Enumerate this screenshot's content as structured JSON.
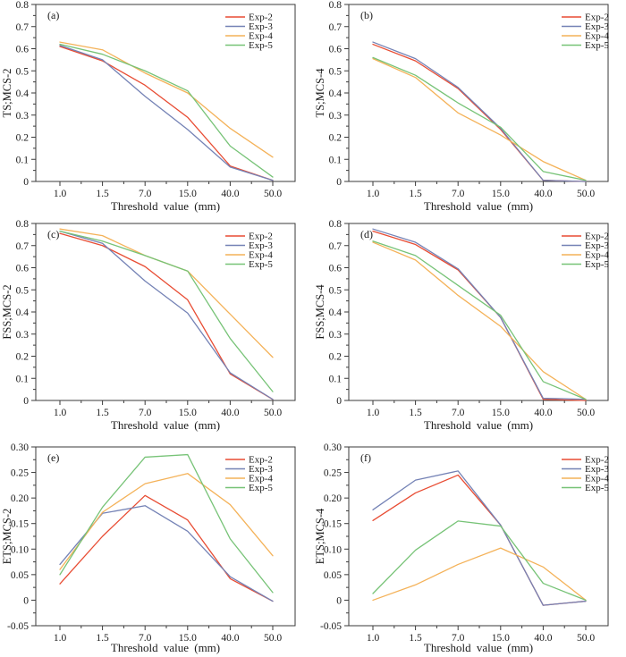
{
  "figure": {
    "x_axis_title": "Threshold value (mm)",
    "x_tick_labels": [
      "1.0",
      "1.5",
      "7.0",
      "15.0",
      "40.0",
      "50.0"
    ],
    "legend_entries": [
      "Exp-2",
      "Exp-3",
      "Exp-4",
      "Exp-5"
    ],
    "colors": {
      "exp2": "#e84c33",
      "exp3": "#7482b5",
      "exp4": "#f4b259",
      "exp5": "#77c377"
    }
  },
  "chart_data": [
    {
      "type": "line",
      "panel_label": "(a)",
      "ylabel": "TS;MCS-2",
      "xlabel": "Threshold value (mm)",
      "categories": [
        "1.0",
        "1.5",
        "7.0",
        "15.0",
        "40.0",
        "50.0"
      ],
      "ylim": [
        0,
        0.8
      ],
      "ytick_step": 0.1,
      "ytick_labels": [
        "0",
        "0.1",
        "0.2",
        "0.3",
        "0.4",
        "0.5",
        "0.6",
        "0.7",
        "0.8"
      ],
      "legend_position": "top-right",
      "grid": false,
      "series": [
        {
          "name": "Exp-2",
          "color": "#e84c33",
          "values": [
            0.61,
            0.545,
            0.435,
            0.29,
            0.07,
            0.005
          ]
        },
        {
          "name": "Exp-3",
          "color": "#7482b5",
          "values": [
            0.615,
            0.55,
            0.385,
            0.235,
            0.065,
            0.005
          ]
        },
        {
          "name": "Exp-4",
          "color": "#f4b259",
          "values": [
            0.63,
            0.595,
            0.49,
            0.4,
            0.24,
            0.11
          ]
        },
        {
          "name": "Exp-5",
          "color": "#77c377",
          "values": [
            0.62,
            0.575,
            0.5,
            0.41,
            0.16,
            0.02
          ]
        }
      ]
    },
    {
      "type": "line",
      "panel_label": "(b)",
      "ylabel": "TS;MCS-4",
      "xlabel": "Threshold value (mm)",
      "categories": [
        "1.0",
        "1.5",
        "7.0",
        "15.0",
        "40.0",
        "50.0"
      ],
      "ylim": [
        0,
        0.8
      ],
      "ytick_step": 0.1,
      "ytick_labels": [
        "0",
        "0.1",
        "0.2",
        "0.3",
        "0.4",
        "0.5",
        "0.6",
        "0.7",
        "0.8"
      ],
      "legend_position": "top-right",
      "grid": false,
      "series": [
        {
          "name": "Exp-2",
          "color": "#e84c33",
          "values": [
            0.62,
            0.545,
            0.42,
            0.235,
            0.005,
            0.0
          ]
        },
        {
          "name": "Exp-3",
          "color": "#7482b5",
          "values": [
            0.63,
            0.555,
            0.425,
            0.24,
            0.005,
            0.0
          ]
        },
        {
          "name": "Exp-4",
          "color": "#f4b259",
          "values": [
            0.555,
            0.47,
            0.31,
            0.21,
            0.09,
            0.005
          ]
        },
        {
          "name": "Exp-5",
          "color": "#77c377",
          "values": [
            0.56,
            0.48,
            0.355,
            0.245,
            0.045,
            0.005
          ]
        }
      ]
    },
    {
      "type": "line",
      "panel_label": "(c)",
      "ylabel": "FSS;MCS-2",
      "xlabel": "Threshold value (mm)",
      "categories": [
        "1.0",
        "1.5",
        "7.0",
        "15.0",
        "40.0",
        "50.0"
      ],
      "ylim": [
        0,
        0.8
      ],
      "ytick_step": 0.1,
      "ytick_labels": [
        "0",
        "0.1",
        "0.2",
        "0.3",
        "0.4",
        "0.5",
        "0.6",
        "0.7",
        "0.8"
      ],
      "legend_position": "top-right",
      "grid": false,
      "series": [
        {
          "name": "Exp-2",
          "color": "#e84c33",
          "values": [
            0.755,
            0.7,
            0.605,
            0.455,
            0.12,
            0.005
          ]
        },
        {
          "name": "Exp-3",
          "color": "#7482b5",
          "values": [
            0.765,
            0.71,
            0.54,
            0.395,
            0.125,
            0.005
          ]
        },
        {
          "name": "Exp-4",
          "color": "#f4b259",
          "values": [
            0.775,
            0.745,
            0.655,
            0.585,
            0.39,
            0.195
          ]
        },
        {
          "name": "Exp-5",
          "color": "#77c377",
          "values": [
            0.765,
            0.72,
            0.655,
            0.585,
            0.28,
            0.04
          ]
        }
      ]
    },
    {
      "type": "line",
      "panel_label": "(d)",
      "ylabel": "FSS;MCS-4",
      "xlabel": "Threshold value (mm)",
      "categories": [
        "1.0",
        "1.5",
        "7.0",
        "15.0",
        "40.0",
        "50.0"
      ],
      "ylim": [
        0,
        0.8
      ],
      "ytick_step": 0.1,
      "ytick_labels": [
        "0",
        "0.1",
        "0.2",
        "0.3",
        "0.4",
        "0.5",
        "0.6",
        "0.7",
        "0.8"
      ],
      "legend_position": "top-right",
      "grid": false,
      "series": [
        {
          "name": "Exp-2",
          "color": "#e84c33",
          "values": [
            0.765,
            0.705,
            0.59,
            0.375,
            0.005,
            0.0
          ]
        },
        {
          "name": "Exp-3",
          "color": "#7482b5",
          "values": [
            0.775,
            0.715,
            0.595,
            0.375,
            0.01,
            0.005
          ]
        },
        {
          "name": "Exp-4",
          "color": "#f4b259",
          "values": [
            0.715,
            0.635,
            0.475,
            0.335,
            0.13,
            0.005
          ]
        },
        {
          "name": "Exp-5",
          "color": "#77c377",
          "values": [
            0.72,
            0.655,
            0.52,
            0.385,
            0.085,
            0.005
          ]
        }
      ]
    },
    {
      "type": "line",
      "panel_label": "(e)",
      "ylabel": "ETS;MCS-2",
      "xlabel": "Threshold value (mm)",
      "categories": [
        "1.0",
        "1.5",
        "7.0",
        "15.0",
        "40.0",
        "50.0"
      ],
      "ylim": [
        -0.05,
        0.3
      ],
      "ytick_step": 0.05,
      "ytick_labels": [
        "-0.05",
        "0",
        "0.05",
        "0.10",
        "0.15",
        "0.20",
        "0.25",
        "0.30"
      ],
      "legend_position": "top-right",
      "grid": false,
      "series": [
        {
          "name": "Exp-2",
          "color": "#e84c33",
          "values": [
            0.032,
            0.125,
            0.205,
            0.157,
            0.042,
            -0.002
          ]
        },
        {
          "name": "Exp-3",
          "color": "#7482b5",
          "values": [
            0.07,
            0.17,
            0.185,
            0.135,
            0.046,
            -0.002
          ]
        },
        {
          "name": "Exp-4",
          "color": "#f4b259",
          "values": [
            0.06,
            0.172,
            0.228,
            0.248,
            0.187,
            0.087
          ]
        },
        {
          "name": "Exp-5",
          "color": "#77c377",
          "values": [
            0.05,
            0.182,
            0.28,
            0.285,
            0.12,
            0.015
          ]
        }
      ]
    },
    {
      "type": "line",
      "panel_label": "(f)",
      "ylabel": "ETS;MCS-4",
      "xlabel": "Threshold value (mm)",
      "categories": [
        "1.0",
        "1.5",
        "7.0",
        "15.0",
        "40.0",
        "50.0"
      ],
      "ylim": [
        -0.05,
        0.3
      ],
      "ytick_step": 0.05,
      "ytick_labels": [
        "-0.05",
        "0",
        "0.05",
        "0.10",
        "0.15",
        "0.20",
        "0.25",
        "0.30"
      ],
      "legend_position": "top-right",
      "grid": false,
      "series": [
        {
          "name": "Exp-2",
          "color": "#e84c33",
          "values": [
            0.156,
            0.21,
            0.245,
            0.147,
            -0.01,
            -0.002
          ]
        },
        {
          "name": "Exp-3",
          "color": "#7482b5",
          "values": [
            0.177,
            0.235,
            0.253,
            0.147,
            -0.01,
            -0.002
          ]
        },
        {
          "name": "Exp-4",
          "color": "#f4b259",
          "values": [
            0.0,
            0.03,
            0.07,
            0.102,
            0.065,
            0.0
          ]
        },
        {
          "name": "Exp-5",
          "color": "#77c377",
          "values": [
            0.013,
            0.098,
            0.155,
            0.145,
            0.033,
            0.0
          ]
        }
      ]
    }
  ]
}
